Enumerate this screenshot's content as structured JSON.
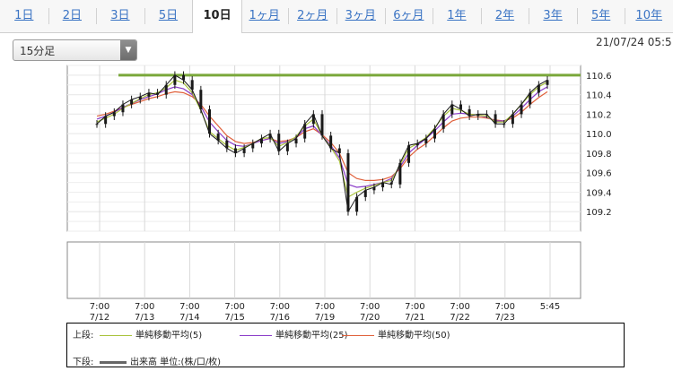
{
  "tabs": [
    {
      "label": "1日",
      "active": false
    },
    {
      "label": "2日",
      "active": false
    },
    {
      "label": "3日",
      "active": false
    },
    {
      "label": "5日",
      "active": false
    },
    {
      "label": "10日",
      "active": true
    },
    {
      "label": "1ヶ月",
      "active": false
    },
    {
      "label": "2ヶ月",
      "active": false
    },
    {
      "label": "3ヶ月",
      "active": false
    },
    {
      "label": "6ヶ月",
      "active": false
    },
    {
      "label": "1年",
      "active": false
    },
    {
      "label": "2年",
      "active": false
    },
    {
      "label": "3年",
      "active": false
    },
    {
      "label": "5年",
      "active": false
    },
    {
      "label": "10年",
      "active": false
    }
  ],
  "interval_select": {
    "value": "15分足"
  },
  "datetime": "21/07/24 05:5",
  "colors": {
    "tab_link": "#3b74c4",
    "ma5": "#a8c23a",
    "ma25": "#8a3cc8",
    "ma50": "#e0603a",
    "price_line": "#7aa83a",
    "candle": "#1a1a1a"
  },
  "chart_data": {
    "type": "line",
    "title": "",
    "xlabel": "",
    "ylabel": "",
    "ylim": [
      109.0,
      110.7
    ],
    "yticks": [
      "110.6",
      "110.4",
      "110.2",
      "110.0",
      "109.8",
      "109.6",
      "109.4",
      "109.2"
    ],
    "xticks": [
      {
        "time": "7:00",
        "date": "7/12"
      },
      {
        "time": "7:00",
        "date": "7/13"
      },
      {
        "time": "7:00",
        "date": "7/14"
      },
      {
        "time": "7:00",
        "date": "7/15"
      },
      {
        "time": "7:00",
        "date": "7/16"
      },
      {
        "time": "7:00",
        "date": "7/19"
      },
      {
        "time": "7:00",
        "date": "7/20"
      },
      {
        "time": "7:00",
        "date": "7/21"
      },
      {
        "time": "7:00",
        "date": "7/22"
      },
      {
        "time": "7:00",
        "date": "7/23"
      },
      {
        "time": "5:45",
        "date": ""
      }
    ],
    "grid": true,
    "current_price_line": 110.6,
    "price": [
      110.1,
      110.18,
      110.22,
      110.3,
      110.35,
      110.38,
      110.42,
      110.4,
      110.5,
      110.6,
      110.55,
      110.45,
      110.25,
      110.0,
      109.93,
      109.85,
      109.8,
      109.85,
      109.9,
      109.95,
      110.0,
      109.82,
      109.9,
      109.95,
      110.1,
      110.2,
      109.98,
      109.85,
      109.8,
      109.2,
      109.35,
      109.42,
      109.45,
      109.5,
      109.48,
      109.7,
      109.88,
      109.9,
      109.95,
      110.05,
      110.2,
      110.3,
      110.25,
      110.18,
      110.2,
      110.2,
      110.1,
      110.1,
      110.2,
      110.3,
      110.42,
      110.5,
      110.55
    ],
    "series": [
      {
        "name": "単純移動平均(5)",
        "values": [
          110.12,
          110.16,
          110.2,
          110.26,
          110.31,
          110.36,
          110.4,
          110.42,
          110.47,
          110.55,
          110.52,
          110.42,
          110.24,
          110.02,
          109.95,
          109.88,
          109.83,
          109.86,
          109.9,
          109.95,
          109.96,
          109.87,
          109.91,
          109.97,
          110.08,
          110.15,
          109.98,
          109.86,
          109.72,
          109.35,
          109.4,
          109.44,
          109.47,
          109.5,
          109.52,
          109.68,
          109.85,
          109.9,
          109.96,
          110.06,
          110.18,
          110.26,
          110.24,
          110.2,
          110.19,
          110.18,
          110.12,
          110.12,
          110.2,
          110.3,
          110.4,
          110.48,
          110.53
        ]
      },
      {
        "name": "単純移動平均(25)",
        "values": [
          110.15,
          110.18,
          110.22,
          110.27,
          110.31,
          110.35,
          110.38,
          110.41,
          110.45,
          110.48,
          110.46,
          110.4,
          110.28,
          110.12,
          110.02,
          109.93,
          109.88,
          109.87,
          109.9,
          109.93,
          109.95,
          109.9,
          109.92,
          109.96,
          110.05,
          110.08,
          109.98,
          109.88,
          109.75,
          109.48,
          109.45,
          109.46,
          109.48,
          109.5,
          109.54,
          109.66,
          109.8,
          109.88,
          109.95,
          110.03,
          110.12,
          110.2,
          110.21,
          110.2,
          110.19,
          110.17,
          110.13,
          110.13,
          110.18,
          110.26,
          110.35,
          110.43,
          110.48
        ]
      },
      {
        "name": "単純移動平均(50)",
        "values": [
          110.18,
          110.2,
          110.23,
          110.27,
          110.3,
          110.33,
          110.36,
          110.38,
          110.41,
          110.43,
          110.42,
          110.38,
          110.3,
          110.18,
          110.08,
          109.98,
          109.92,
          109.9,
          109.91,
          109.93,
          109.95,
          109.92,
          109.93,
          109.96,
          110.02,
          110.05,
          109.99,
          109.91,
          109.8,
          109.6,
          109.54,
          109.52,
          109.52,
          109.53,
          109.56,
          109.64,
          109.76,
          109.84,
          109.9,
          109.98,
          110.06,
          110.13,
          110.16,
          110.17,
          110.17,
          110.16,
          110.14,
          110.13,
          110.16,
          110.22,
          110.3,
          110.37,
          110.43
        ]
      }
    ]
  },
  "legend": {
    "upper_label": "上段:",
    "lower_label": "下段:",
    "ma5": "単純移動平均(5)",
    "ma25": "単純移動平均(25)",
    "ma50": "単純移動平均(50)",
    "volume": "出来高 単位:(株/口/枚)"
  }
}
